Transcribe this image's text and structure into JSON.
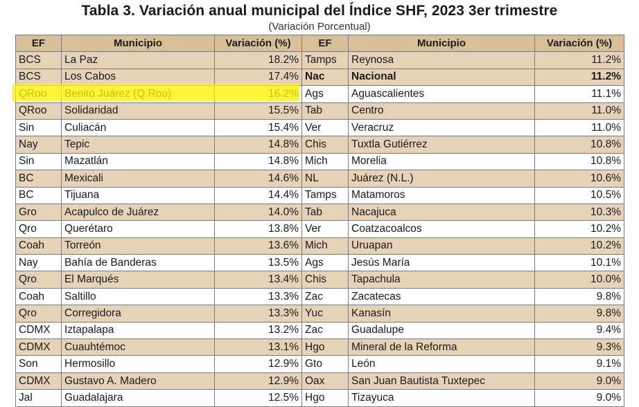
{
  "title": "Tabla 3. Variación anual municipal del Índice SHF, 2023 3er trimestre",
  "subtitle": "(Variación Porcentual)",
  "headers": [
    "EF",
    "Municipio",
    "Variación (%)",
    "EF",
    "Municipio",
    "Variación (%)"
  ],
  "rows": [
    {
      "shade": true,
      "ef1": "BCS",
      "mun1": "La Paz",
      "var1": "18.2%",
      "ef2": "Tamps",
      "mun2": "Reynosa",
      "var2": "11.2%"
    },
    {
      "shade": true,
      "ef1": "BCS",
      "mun1": "Los Cabos",
      "var1": "17.4%",
      "ef2": "Nac",
      "mun2": "Nacional",
      "var2": "11.2%",
      "bold2": true
    },
    {
      "shade": false,
      "ef1": "QRoo",
      "mun1": "Benito Juárez (Q.Roo)",
      "var1": "16.2%",
      "ef2": "Ags",
      "mun2": "Aguascalientes",
      "var2": "11.1%"
    },
    {
      "shade": true,
      "ef1": "QRoo",
      "mun1": "Solidaridad",
      "var1": "15.5%",
      "ef2": "Tab",
      "mun2": "Centro",
      "var2": "11.0%"
    },
    {
      "shade": false,
      "ef1": "Sin",
      "mun1": "Culiacán",
      "var1": "15.4%",
      "ef2": "Ver",
      "mun2": "Veracruz",
      "var2": "11.0%"
    },
    {
      "shade": true,
      "ef1": "Nay",
      "mun1": "Tepic",
      "var1": "14.8%",
      "ef2": "Chis",
      "mun2": "Tuxtla Gutiérrez",
      "var2": "10.8%"
    },
    {
      "shade": false,
      "ef1": "Sin",
      "mun1": "Mazatlán",
      "var1": "14.8%",
      "ef2": "Mich",
      "mun2": "Morelia",
      "var2": "10.8%"
    },
    {
      "shade": true,
      "ef1": "BC",
      "mun1": "Mexicali",
      "var1": "14.6%",
      "ef2": "NL",
      "mun2": "Juárez (N.L.)",
      "var2": "10.6%"
    },
    {
      "shade": false,
      "ef1": "BC",
      "mun1": "Tijuana",
      "var1": "14.4%",
      "ef2": "Tamps",
      "mun2": "Matamoros",
      "var2": "10.5%"
    },
    {
      "shade": true,
      "ef1": "Gro",
      "mun1": "Acapulco de Juárez",
      "var1": "14.0%",
      "ef2": "Tab",
      "mun2": "Nacajuca",
      "var2": "10.3%"
    },
    {
      "shade": false,
      "ef1": "Qro",
      "mun1": "Querétaro",
      "var1": "13.8%",
      "ef2": "Ver",
      "mun2": "Coatzacoalcos",
      "var2": "10.2%"
    },
    {
      "shade": true,
      "ef1": "Coah",
      "mun1": "Torreón",
      "var1": "13.6%",
      "ef2": "Mich",
      "mun2": "Uruapan",
      "var2": "10.2%"
    },
    {
      "shade": false,
      "ef1": "Nay",
      "mun1": "Bahía de Banderas",
      "var1": "13.5%",
      "ef2": "Ags",
      "mun2": "Jesús María",
      "var2": "10.1%"
    },
    {
      "shade": true,
      "ef1": "Qro",
      "mun1": "El Marqués",
      "var1": "13.4%",
      "ef2": "Chis",
      "mun2": "Tapachula",
      "var2": "10.0%"
    },
    {
      "shade": false,
      "ef1": "Coah",
      "mun1": "Saltillo",
      "var1": "13.3%",
      "ef2": "Zac",
      "mun2": "Zacatecas",
      "var2": "9.8%"
    },
    {
      "shade": true,
      "ef1": "Qro",
      "mun1": "Corregidora",
      "var1": "13.3%",
      "ef2": "Yuc",
      "mun2": "Kanasín",
      "var2": "9.8%"
    },
    {
      "shade": false,
      "ef1": "CDMX",
      "mun1": "Iztapalapa",
      "var1": "13.2%",
      "ef2": "Zac",
      "mun2": "Guadalupe",
      "var2": "9.4%"
    },
    {
      "shade": true,
      "ef1": "CDMX",
      "mun1": "Cuauhtémoc",
      "var1": "13.1%",
      "ef2": "Hgo",
      "mun2": "Mineral de la Reforma",
      "var2": "9.3%"
    },
    {
      "shade": false,
      "ef1": "Son",
      "mun1": "Hermosillo",
      "var1": "12.9%",
      "ef2": "Gto",
      "mun2": "León",
      "var2": "9.1%"
    },
    {
      "shade": true,
      "ef1": "CDMX",
      "mun1": "Gustavo A. Madero",
      "var1": "12.9%",
      "ef2": "Oax",
      "mun2": "San Juan Bautista Tuxtepec",
      "var2": "9.0%"
    },
    {
      "shade": false,
      "ef1": "Jal",
      "mun1": "Guadalajara",
      "var1": "12.5%",
      "ef2": "Hgo",
      "mun2": "Tizayuca",
      "var2": "9.0%"
    }
  ],
  "highlight_color": "#fff200"
}
